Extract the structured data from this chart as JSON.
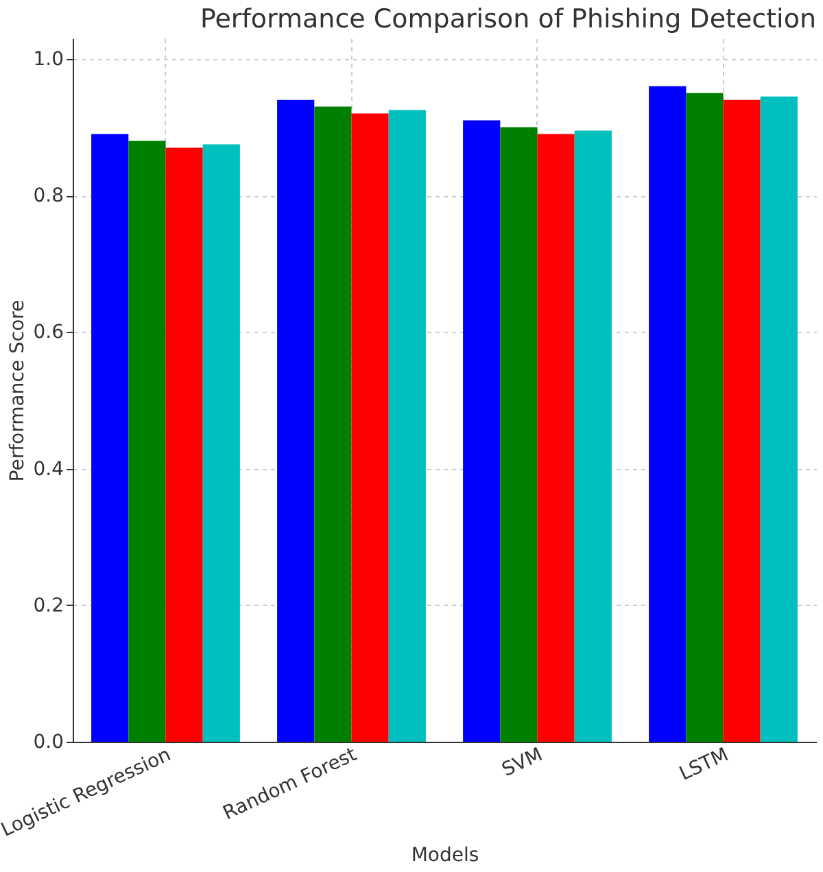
{
  "chart_data": {
    "type": "bar",
    "title": "Performance Comparison of Phishing Detection",
    "xlabel": "Models",
    "ylabel": "Performance Score",
    "categories": [
      "Logistic Regression",
      "Random Forest",
      "SVM",
      "LSTM"
    ],
    "series": [
      {
        "color": "#0000ff",
        "values": [
          0.89,
          0.94,
          0.91,
          0.96
        ]
      },
      {
        "color": "#008000",
        "values": [
          0.88,
          0.93,
          0.9,
          0.95
        ]
      },
      {
        "color": "#ff0000",
        "values": [
          0.87,
          0.92,
          0.89,
          0.94
        ]
      },
      {
        "color": "#00bfbf",
        "values": [
          0.875,
          0.925,
          0.895,
          0.945
        ]
      }
    ],
    "ylim": [
      0,
      1.03
    ],
    "yticks": [
      {
        "value": 0,
        "label": "0.0"
      },
      0.2,
      0.4,
      0.6,
      0.8,
      {
        "value": 1,
        "label": "1.0"
      }
    ],
    "grid": true
  }
}
